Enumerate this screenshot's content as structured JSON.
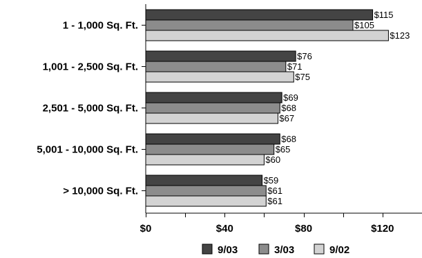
{
  "chart_data": {
    "type": "bar",
    "orientation": "horizontal",
    "categories": [
      "1 - 1,000 Sq. Ft.",
      "1,001 - 2,500 Sq. Ft.",
      "2,501 - 5,000 Sq. Ft.",
      "5,001 - 10,000 Sq. Ft.",
      "> 10,000 Sq. Ft."
    ],
    "series": [
      {
        "name": "9/03",
        "values": [
          115,
          76,
          69,
          68,
          59
        ],
        "labels": [
          "$115",
          "$76",
          "$69",
          "$68",
          "$59"
        ],
        "color": "#444444"
      },
      {
        "name": "3/03",
        "values": [
          105,
          71,
          68,
          65,
          61
        ],
        "labels": [
          "$105",
          "$71",
          "$68",
          "$65",
          "$61"
        ],
        "color": "#8c8c8c"
      },
      {
        "name": "9/02",
        "values": [
          123,
          75,
          67,
          60,
          61
        ],
        "labels": [
          "$123",
          "$75",
          "$67",
          "$60",
          "$61"
        ],
        "color": "#d3d3d3"
      }
    ],
    "x_ticks": [
      {
        "value": 0,
        "label": "$0"
      },
      {
        "value": 40,
        "label": "$40"
      },
      {
        "value": 80,
        "label": "$80"
      },
      {
        "value": 120,
        "label": "$120"
      }
    ],
    "xlim": [
      0,
      140
    ],
    "grid": false,
    "legend_position": "bottom"
  }
}
